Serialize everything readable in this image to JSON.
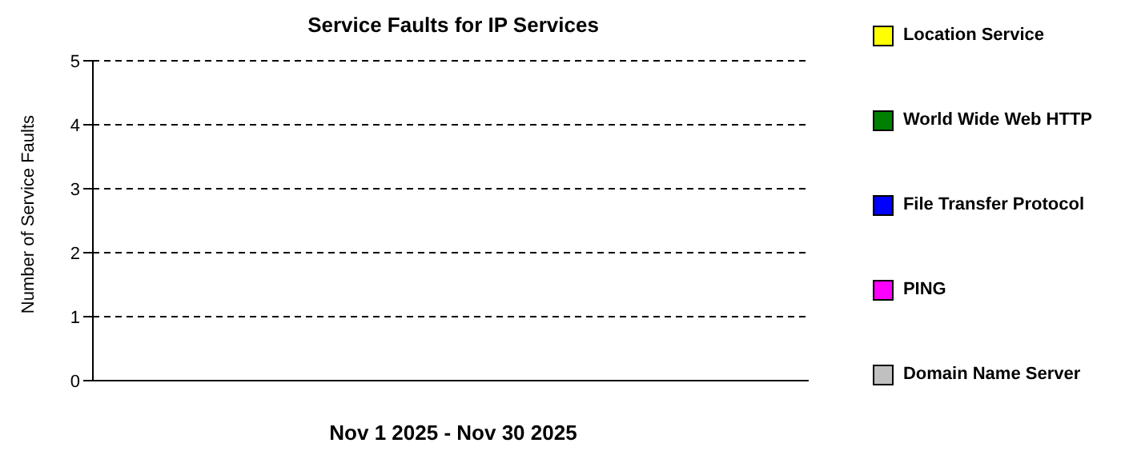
{
  "chart_data": {
    "type": "bar",
    "title": "Service Faults for IP Services",
    "xlabel": "Nov 1 2025 - Nov 30 2025",
    "ylabel": "Number of Service Faults",
    "categories": [
      null
    ],
    "series": [
      {
        "name": "Location Service",
        "color": "#ffff00",
        "values": [
          0
        ]
      },
      {
        "name": "World Wide Web HTTP",
        "color": "#008000",
        "values": [
          0
        ]
      },
      {
        "name": "File Transfer Protocol",
        "color": "#0000ff",
        "values": [
          0
        ]
      },
      {
        "name": "PING",
        "color": "#ff00ff",
        "values": [
          0
        ]
      },
      {
        "name": "Domain Name Server",
        "color": "#c0c0c0",
        "values": [
          0
        ]
      }
    ],
    "ylim": [
      0,
      5
    ],
    "yticks": [
      0,
      1,
      2,
      3,
      4,
      5
    ],
    "grid": "y",
    "legend": "right"
  }
}
